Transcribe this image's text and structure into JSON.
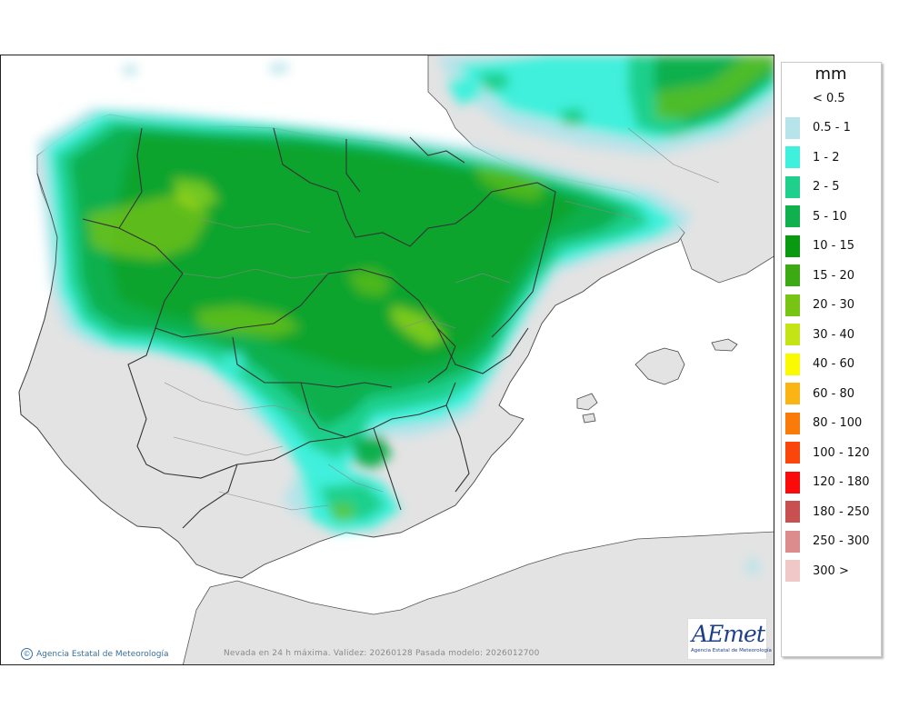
{
  "map": {
    "caption": "Nevada en 24 h máxima. Validez: 20260128 Pasada modelo: 2026012700",
    "copyright": "Agencia Estatal de Meteorología",
    "logo": {
      "wordmark_a": "A",
      "wordmark_rest": "Emet",
      "subtitle": "Agencia Estatal de Meteorología"
    },
    "colors": {
      "land": "#e3e3e3",
      "sea": "#ffffff",
      "border": "#2e2e2e"
    }
  },
  "legend": {
    "unit": "mm",
    "items": [
      {
        "label": "< 0.5",
        "color": ""
      },
      {
        "label": "0.5 - 1",
        "color": "#b7e3ea"
      },
      {
        "label": "1 - 2",
        "color": "#3ff0dc"
      },
      {
        "label": "2 - 5",
        "color": "#1fd08c"
      },
      {
        "label": "5 - 10",
        "color": "#10b04e"
      },
      {
        "label": "10 - 15",
        "color": "#0a9a12"
      },
      {
        "label": "15 - 20",
        "color": "#3daa14"
      },
      {
        "label": "20 - 30",
        "color": "#78c414"
      },
      {
        "label": "30 - 40",
        "color": "#c4e416"
      },
      {
        "label": "40 - 60",
        "color": "#fafa00"
      },
      {
        "label": "60 - 80",
        "color": "#fab414"
      },
      {
        "label": "80 - 100",
        "color": "#fa7a0a"
      },
      {
        "label": "100 - 120",
        "color": "#fa460a"
      },
      {
        "label": "120 - 180",
        "color": "#fa0a0a"
      },
      {
        "label": "180 - 250",
        "color": "#c85050"
      },
      {
        "label": "250 - 300",
        "color": "#dc8c8c"
      },
      {
        "label": "300 >",
        "color": "#f0c8c8"
      }
    ]
  }
}
